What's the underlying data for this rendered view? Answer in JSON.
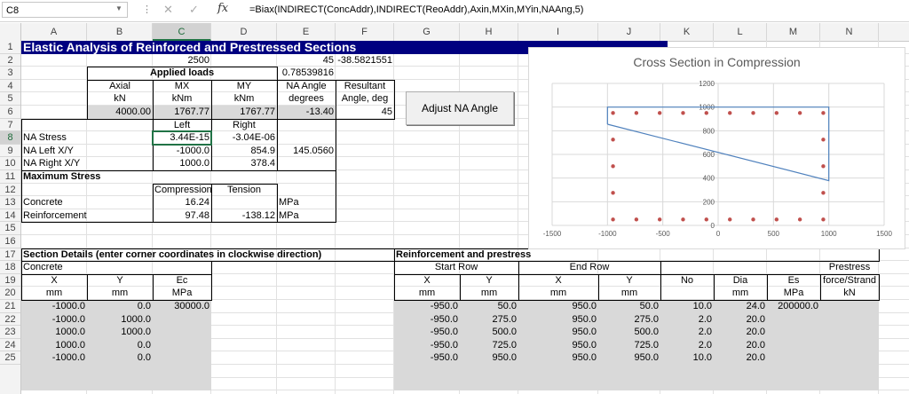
{
  "formula_bar": {
    "cell_ref": "C8",
    "formula": "=Biax(INDIRECT(ConcAddr),INDIRECT(ReoAddr),Axin,MXin,MYin,NAAng,5)"
  },
  "columns": [
    "A",
    "B",
    "C",
    "D",
    "E",
    "F",
    "G",
    "H",
    "I",
    "J",
    "K",
    "L",
    "M",
    "N"
  ],
  "rows": [
    "1",
    "2",
    "3",
    "4",
    "5",
    "6",
    "7",
    "8",
    "9",
    "10",
    "11",
    "12",
    "13",
    "14",
    "15",
    "16",
    "17",
    "18",
    "19",
    "20",
    "21",
    "22",
    "23",
    "24",
    "25"
  ],
  "sheet": {
    "title": "Elastic Analysis of Reinforced and Prestressed Sections",
    "r2": {
      "c": "2500",
      "e": "45",
      "f": "-38.5821551"
    },
    "r3": {
      "applied_loads": "Applied loads",
      "e": "0.78539816"
    },
    "r4": {
      "b": "Axial",
      "c": "MX",
      "d": "MY",
      "e": "NA Angle",
      "f": "Resultant"
    },
    "r5": {
      "b": "kN",
      "c": "kNm",
      "d": "kNm",
      "e": "degrees",
      "f": "Angle, deg"
    },
    "r6": {
      "b": "4000.00",
      "c": "1767.77",
      "d": "1767.77",
      "e": "-13.40",
      "f": "45"
    },
    "r7": {
      "c": "Left",
      "d": "Right"
    },
    "r8": {
      "a": "NA Stress",
      "c": "3.44E-15",
      "d": "-3.04E-06"
    },
    "r9": {
      "a": "NA Left X/Y",
      "c": "-1000.0",
      "d": "854.9",
      "e": "145.0560"
    },
    "r10": {
      "a": "NA Right X/Y",
      "c": "1000.0",
      "d": "378.4"
    },
    "r11": {
      "b": "Maximum Stress"
    },
    "r12": {
      "c": "Compression",
      "d": "Tension"
    },
    "r13": {
      "a": "Concrete",
      "c": "16.24",
      "e": "MPa"
    },
    "r14": {
      "a": "Reinforcement",
      "c": "97.48",
      "d": "-138.12",
      "e": "MPa"
    },
    "r17": {
      "a": "Section Details (enter corner coordinates in clockwise direction)",
      "g": "Reinforcement and prestress"
    },
    "r18": {
      "a": "Concrete",
      "g": "Start Row",
      "i": "End Row"
    },
    "r19": {
      "a": "X",
      "b": "Y",
      "c": "Ec",
      "g": "X",
      "h": "Y",
      "i": "X",
      "j": "Y",
      "k": "No",
      "l": "Dia",
      "m": "Es",
      "n": "Prestress",
      "n2": "force/Strand"
    },
    "r20": {
      "a": "mm",
      "b": "mm",
      "c": "MPa",
      "g": "mm",
      "h": "mm",
      "i": "mm",
      "j": "mm",
      "l": "mm",
      "m": "MPa",
      "n": "kN"
    },
    "concrete_rows": [
      [
        "-1000.0",
        "0.0",
        "30000.0"
      ],
      [
        "-1000.0",
        "1000.0",
        ""
      ],
      [
        "1000.0",
        "1000.0",
        ""
      ],
      [
        "1000.0",
        "0.0",
        ""
      ],
      [
        "-1000.0",
        "0.0",
        ""
      ]
    ],
    "reo_rows": [
      [
        "-950.0",
        "50.0",
        "950.0",
        "50.0",
        "10.0",
        "24.0",
        "200000.0"
      ],
      [
        "-950.0",
        "275.0",
        "950.0",
        "275.0",
        "2.0",
        "20.0",
        ""
      ],
      [
        "-950.0",
        "500.0",
        "950.0",
        "500.0",
        "2.0",
        "20.0",
        ""
      ],
      [
        "-950.0",
        "725.0",
        "950.0",
        "725.0",
        "2.0",
        "20.0",
        ""
      ],
      [
        "-950.0",
        "950.0",
        "950.0",
        "950.0",
        "10.0",
        "20.0",
        ""
      ]
    ]
  },
  "button": {
    "label": "Adjust NA Angle"
  },
  "chart_data": {
    "type": "scatter",
    "title": "Cross Section in Compression",
    "xlim": [
      -1500,
      1500
    ],
    "ylim": [
      0,
      1200
    ],
    "x_ticks": [
      -1500,
      -1000,
      -500,
      0,
      500,
      1000,
      1500
    ],
    "y_ticks": [
      0,
      200,
      400,
      600,
      800,
      1000,
      1200
    ],
    "x_tick_labels": [
      "-1500",
      "-1000",
      "-500",
      "0",
      "500",
      "1000",
      "1500"
    ],
    "y_tick_labels": [
      "0",
      "200",
      "400",
      "600",
      "800",
      "1000",
      "1200"
    ],
    "grid": true,
    "compression_zone": [
      [
        -1000,
        854.9
      ],
      [
        -1000,
        1000
      ],
      [
        1000,
        1000
      ],
      [
        1000,
        378.4
      ],
      [
        -1000,
        854.9
      ]
    ],
    "bar_x": [
      -950,
      -739,
      -528,
      -317,
      -106,
      106,
      317,
      528,
      739,
      950
    ],
    "bar_side_x": [
      -950,
      950
    ],
    "bar_rows_full": [
      50,
      950
    ],
    "bar_rows_side": [
      275,
      500,
      725
    ],
    "colors": {
      "outline": "#4f81bd",
      "bars": "#c0504d",
      "grid": "#d9d9d9",
      "title_bar": "#000080"
    }
  }
}
